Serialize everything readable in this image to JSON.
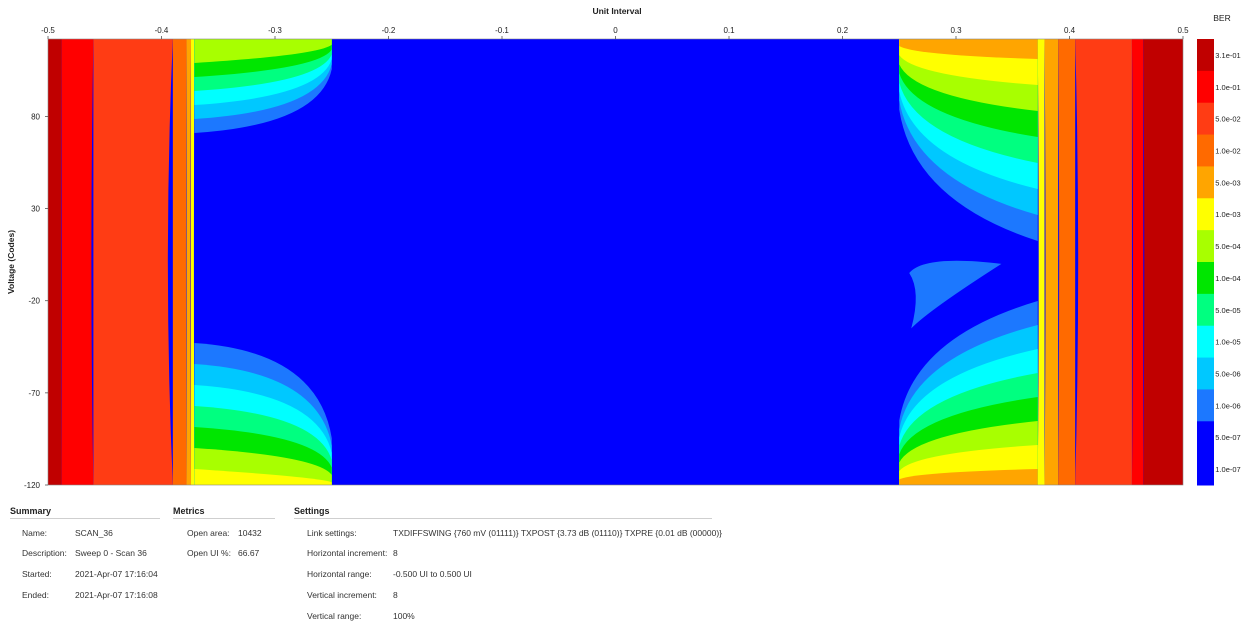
{
  "chart_data": {
    "type": "heatmap",
    "title": "Unit Interval",
    "xlabel": "Unit Interval",
    "ylabel": "Voltage (Codes)",
    "colorbar_title": "BER",
    "xlim": [
      -0.5,
      0.5
    ],
    "ylim": [
      -120,
      122
    ],
    "x_ticks": [
      "-0.5",
      "-0.4",
      "-0.3",
      "-0.2",
      "-0.1",
      "0",
      "0.1",
      "0.2",
      "0.3",
      "0.4",
      "0.5"
    ],
    "x_tick_values": [
      -0.5,
      -0.4,
      -0.3,
      -0.2,
      -0.1,
      0,
      0.1,
      0.2,
      0.3,
      0.4,
      0.5
    ],
    "y_ticks": [
      "80",
      "30",
      "-20",
      "-70",
      "-120"
    ],
    "y_tick_values": [
      80,
      30,
      -20,
      -70,
      -120
    ],
    "levels": [
      {
        "label": "3.1e-01",
        "color": "#c00000"
      },
      {
        "label": "1.0e-01",
        "color": "#ff0000"
      },
      {
        "label": "5.0e-02",
        "color": "#ff3c14"
      },
      {
        "label": "1.0e-02",
        "color": "#ff6a00"
      },
      {
        "label": "5.0e-03",
        "color": "#ffa500"
      },
      {
        "label": "1.0e-03",
        "color": "#ffff00"
      },
      {
        "label": "5.0e-04",
        "color": "#a8ff00"
      },
      {
        "label": "1.0e-04",
        "color": "#00e600"
      },
      {
        "label": "5.0e-05",
        "color": "#00ff80"
      },
      {
        "label": "1.0e-05",
        "color": "#00ffff"
      },
      {
        "label": "5.0e-06",
        "color": "#00c8ff"
      },
      {
        "label": "1.0e-06",
        "color": "#1c78ff"
      },
      {
        "label": "5.0e-07",
        "color": "#0000ff"
      },
      {
        "label": "1.0e-07",
        "color": "#0000ff"
      }
    ],
    "open_eye": {
      "x_range": [
        -0.37,
        0.25
      ],
      "level": "1.0e-07"
    },
    "left_edge_band_x": [
      {
        "level": "3.1e-01",
        "x_end": -0.488
      },
      {
        "level": "1.0e-01",
        "x_end": -0.46
      },
      {
        "level": "5.0e-02",
        "x_end": -0.39
      },
      {
        "level": "1.0e-02",
        "x_end": -0.378
      },
      {
        "level": "5.0e-03",
        "x_end": -0.374
      },
      {
        "level": "1.0e-03",
        "x_end": -0.371
      }
    ],
    "right_edge_band_x": [
      {
        "level": "1.0e-03",
        "x_start": 0.372
      },
      {
        "level": "5.0e-03",
        "x_start": 0.378
      },
      {
        "level": "1.0e-02",
        "x_start": 0.39
      },
      {
        "level": "5.0e-02",
        "x_start": 0.405
      },
      {
        "level": "1.0e-01",
        "x_start": 0.455
      },
      {
        "level": "3.1e-01",
        "x_start": 0.465
      }
    ]
  },
  "summary": {
    "title": "Summary",
    "rows": [
      {
        "label": "Name:",
        "value": "SCAN_36"
      },
      {
        "label": "Description:",
        "value": "Sweep 0 - Scan 36"
      },
      {
        "label": "Started:",
        "value": "2021-Apr-07 17:16:04"
      },
      {
        "label": "Ended:",
        "value": "2021-Apr-07 17:16:08"
      }
    ]
  },
  "metrics": {
    "title": "Metrics",
    "rows": [
      {
        "label": "Open area:",
        "value": "10432"
      },
      {
        "label": "Open UI %:",
        "value": "66.67"
      }
    ]
  },
  "settings": {
    "title": "Settings",
    "rows": [
      {
        "label": "Link settings:",
        "value": "TXDIFFSWING {760 mV (01111)} TXPOST {3.73 dB (01110)} TXPRE {0.01 dB (00000)}"
      },
      {
        "label": "Horizontal increment:",
        "value": "8"
      },
      {
        "label": "Horizontal range:",
        "value": "-0.500 UI to 0.500 UI"
      },
      {
        "label": "Vertical increment:",
        "value": "8"
      },
      {
        "label": "Vertical range:",
        "value": "100%"
      }
    ]
  }
}
